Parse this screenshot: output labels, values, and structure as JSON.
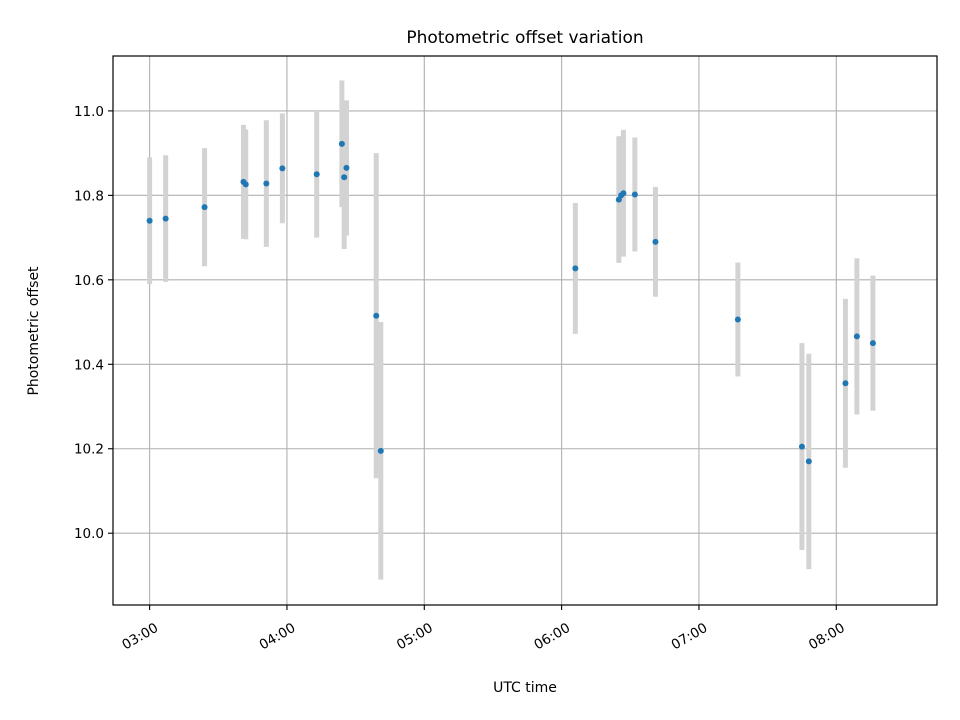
{
  "chart_data": {
    "type": "scatter",
    "title": "Photometric offset variation",
    "xlabel": "UTC time",
    "ylabel": "Photometric offset",
    "xlim": [
      "02:44",
      "08:44"
    ],
    "ylim": [
      9.83,
      11.13
    ],
    "grid": true,
    "x_ticks": [
      "03:00",
      "04:00",
      "05:00",
      "06:00",
      "07:00",
      "08:00"
    ],
    "y_ticks": [
      "10.0",
      "10.2",
      "10.4",
      "10.6",
      "10.8",
      "11.0"
    ],
    "colors": {
      "points": "#1f77b4",
      "errorbars": "#d3d3d3"
    },
    "points": [
      {
        "x": "03:00",
        "y": 10.74,
        "err": 0.15
      },
      {
        "x": "03:07",
        "y": 10.745,
        "err": 0.15
      },
      {
        "x": "03:24",
        "y": 10.772,
        "err": 0.14
      },
      {
        "x": "03:41",
        "y": 10.832,
        "err": 0.135
      },
      {
        "x": "03:42",
        "y": 10.826,
        "err": 0.13
      },
      {
        "x": "03:51",
        "y": 10.828,
        "err": 0.15
      },
      {
        "x": "03:58",
        "y": 10.864,
        "err": 0.13
      },
      {
        "x": "04:13",
        "y": 10.85,
        "err": 0.15
      },
      {
        "x": "04:24",
        "y": 10.922,
        "err": 0.15
      },
      {
        "x": "04:25",
        "y": 10.843,
        "err": 0.17
      },
      {
        "x": "04:26",
        "y": 10.865,
        "err": 0.16
      },
      {
        "x": "04:39",
        "y": 10.515,
        "err": 0.385
      },
      {
        "x": "04:41",
        "y": 10.195,
        "err": 0.305
      },
      {
        "x": "06:06",
        "y": 10.627,
        "err": 0.155
      },
      {
        "x": "06:25",
        "y": 10.79,
        "err": 0.15
      },
      {
        "x": "06:26",
        "y": 10.8,
        "err": 0.14
      },
      {
        "x": "06:27",
        "y": 10.805,
        "err": 0.15
      },
      {
        "x": "06:32",
        "y": 10.802,
        "err": 0.135
      },
      {
        "x": "06:41",
        "y": 10.69,
        "err": 0.13
      },
      {
        "x": "07:17",
        "y": 10.506,
        "err": 0.135
      },
      {
        "x": "07:45",
        "y": 10.205,
        "err": 0.245
      },
      {
        "x": "07:48",
        "y": 10.17,
        "err": 0.255
      },
      {
        "x": "08:04",
        "y": 10.355,
        "err": 0.2
      },
      {
        "x": "08:09",
        "y": 10.466,
        "err": 0.185
      },
      {
        "x": "08:16",
        "y": 10.45,
        "err": 0.16
      }
    ]
  }
}
